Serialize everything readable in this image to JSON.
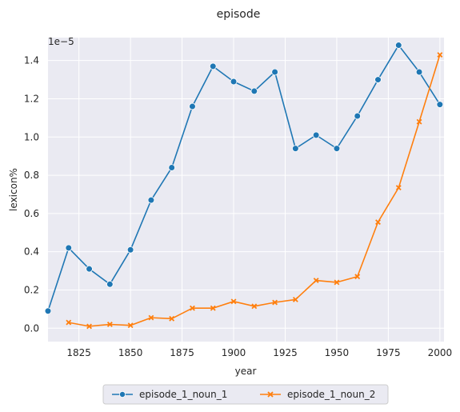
{
  "chart_data": {
    "type": "line",
    "title": "episode",
    "xlabel": "year",
    "ylabel": "lexicon%",
    "y_scale_label": "1e−5",
    "xlim": [
      1810,
      2002
    ],
    "ylim": [
      -0.07,
      1.52
    ],
    "x_ticks": [
      1825,
      1850,
      1875,
      1900,
      1925,
      1950,
      1975,
      2000
    ],
    "y_ticks": [
      0.0,
      0.2,
      0.4,
      0.6,
      0.8,
      1.0,
      1.2,
      1.4
    ],
    "x_tick_labels": [
      "1825",
      "1850",
      "1875",
      "1900",
      "1925",
      "1950",
      "1975",
      "2000"
    ],
    "y_tick_labels": [
      "0.0",
      "0.2",
      "0.4",
      "0.6",
      "0.8",
      "1.0",
      "1.2",
      "1.4"
    ],
    "grid": true,
    "legend_position": "bottom-center",
    "series": [
      {
        "name": "episode_1_noun_1",
        "color": "#1f77b4",
        "marker": "circle",
        "x": [
          1810,
          1820,
          1830,
          1840,
          1850,
          1860,
          1870,
          1880,
          1890,
          1900,
          1910,
          1920,
          1930,
          1940,
          1950,
          1960,
          1970,
          1980,
          1990,
          2000
        ],
        "y": [
          0.09,
          0.42,
          0.31,
          0.23,
          0.41,
          0.67,
          0.84,
          1.16,
          1.37,
          1.29,
          1.24,
          1.34,
          0.94,
          1.01,
          0.94,
          1.11,
          1.3,
          1.48,
          1.34,
          1.17
        ]
      },
      {
        "name": "episode_1_noun_2",
        "color": "#ff7f0e",
        "marker": "x",
        "x": [
          1820,
          1830,
          1840,
          1850,
          1860,
          1870,
          1880,
          1890,
          1900,
          1910,
          1920,
          1930,
          1940,
          1950,
          1960,
          1970,
          1980,
          1990,
          2000
        ],
        "y": [
          0.03,
          0.01,
          0.02,
          0.015,
          0.055,
          0.05,
          0.105,
          0.105,
          0.14,
          0.115,
          0.135,
          0.15,
          0.25,
          0.24,
          0.27,
          0.555,
          0.735,
          1.08,
          1.43
        ]
      }
    ]
  }
}
